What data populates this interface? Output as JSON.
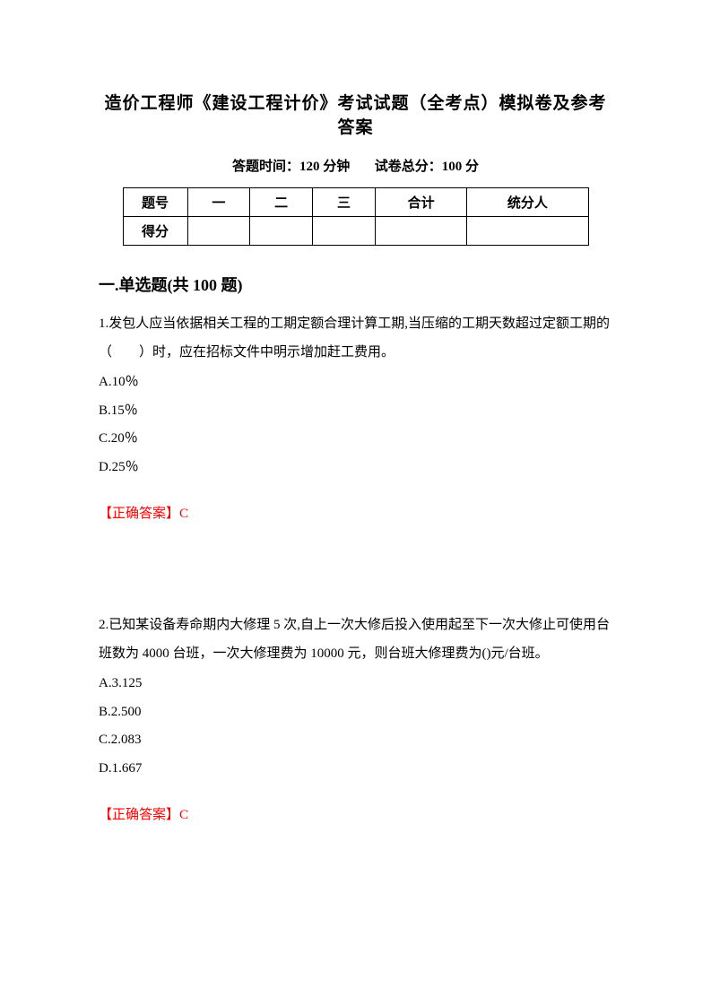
{
  "document": {
    "title": "造价工程师《建设工程计价》考试试题（全考点）模拟卷及参考答案",
    "time_label": "答题时间：120 分钟",
    "total_label": "试卷总分：100 分",
    "table": {
      "header_row": {
        "c0": "题号",
        "c1": "一",
        "c2": "二",
        "c3": "三",
        "c4": "合计",
        "c5": "统分人"
      },
      "score_row": {
        "c0": "得分",
        "c1": "",
        "c2": "",
        "c3": "",
        "c4": "",
        "c5": ""
      }
    },
    "section_heading": "一.单选题(共 100 题)",
    "questions": [
      {
        "text": "1.发包人应当依据相关工程的工期定额合理计算工期,当压缩的工期天数超过定额工期的（　　）时，应在招标文件中明示增加赶工费用。",
        "options": {
          "a": "A.10％",
          "b": "B.15％",
          "c": "C.20％",
          "d": "D.25％"
        },
        "answer": "【正确答案】C"
      },
      {
        "text": "2.已知某设备寿命期内大修理 5 次,自上一次大修后投入使用起至下一次大修止可使用台班数为 4000 台班，一次大修理费为 10000 元，则台班大修理费为()元/台班。",
        "options": {
          "a": "A.3.125",
          "b": "B.2.500",
          "c": "C.2.083",
          "d": "D.1.667"
        },
        "answer": "【正确答案】C"
      }
    ]
  }
}
